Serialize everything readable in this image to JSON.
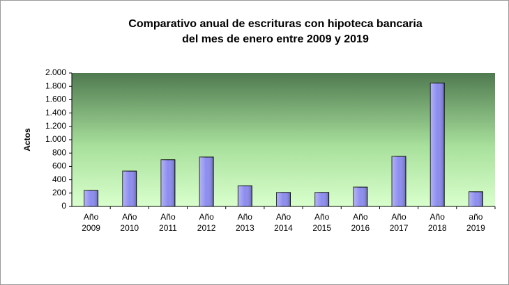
{
  "chart_data": {
    "type": "bar",
    "title": [
      "Comparativo anual de escrituras con hipoteca bancaria",
      "del mes de enero entre 2009 y 2019"
    ],
    "y_label": "Actos",
    "categories": [
      [
        "Año",
        "2009"
      ],
      [
        "Año",
        "2010"
      ],
      [
        "Año",
        "2011"
      ],
      [
        "Año",
        "2012"
      ],
      [
        "Año",
        "2013"
      ],
      [
        "Año",
        "2014"
      ],
      [
        "Año",
        "2015"
      ],
      [
        "Año",
        "2016"
      ],
      [
        "Año",
        "2017"
      ],
      [
        "Año",
        "2018"
      ],
      [
        "año",
        "2019"
      ]
    ],
    "values": [
      240,
      530,
      700,
      740,
      310,
      210,
      210,
      290,
      750,
      1850,
      220
    ],
    "color": "#8c8cf0",
    "ylim": [
      0,
      2000
    ],
    "yticks": [
      0,
      200,
      400,
      600,
      800,
      {
        "value": 1000,
        "label": "1.000"
      },
      {
        "value": 1200,
        "label": "1.200"
      },
      {
        "value": 1400,
        "label": "1.400"
      },
      {
        "value": 1600,
        "label": "1.600"
      },
      {
        "value": 1800,
        "label": "1.800"
      },
      {
        "value": 2000,
        "label": "2.000"
      }
    ]
  }
}
